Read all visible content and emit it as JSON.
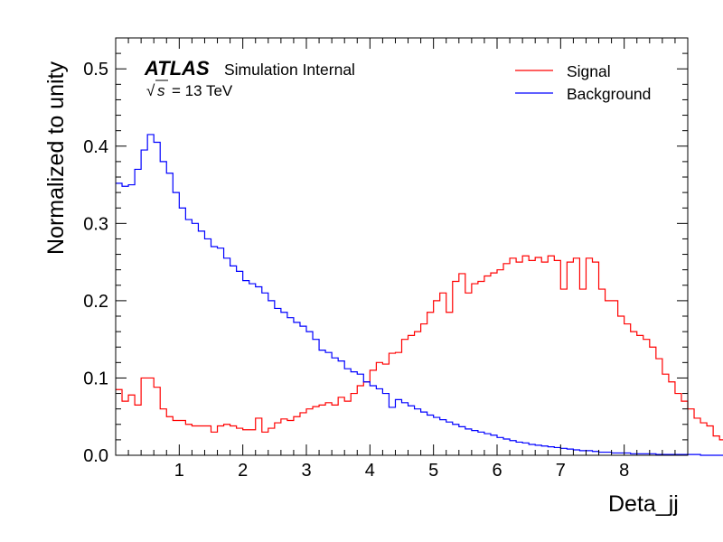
{
  "chart_data": {
    "type": "histogram-step",
    "xlabel": "Deta_jj",
    "ylabel": "Normalized to unity",
    "xlim": [
      0,
      9
    ],
    "ylim": [
      0,
      0.54
    ],
    "xticks": [
      "1",
      "2",
      "3",
      "4",
      "5",
      "6",
      "7",
      "8"
    ],
    "xtick_values": [
      1,
      2,
      3,
      4,
      5,
      6,
      7,
      8
    ],
    "yticks": [
      "0.0",
      "0.1",
      "0.2",
      "0.3",
      "0.4",
      "0.5"
    ],
    "ytick_values": [
      0,
      0.1,
      0.2,
      0.3,
      0.4,
      0.5
    ],
    "annotation": {
      "atlas": "ATLAS",
      "label": "Simulation Internal",
      "sqrt_symbol": "√",
      "s_symbol": "s",
      "energy": "= 13 TeV"
    },
    "legend_position": "top-right",
    "bin_width": 0.1,
    "series": [
      {
        "name": "Signal",
        "color": "#ff0000",
        "values": [
          0.085,
          0.07,
          0.078,
          0.065,
          0.1,
          0.1,
          0.088,
          0.06,
          0.05,
          0.045,
          0.045,
          0.04,
          0.038,
          0.038,
          0.038,
          0.03,
          0.038,
          0.04,
          0.038,
          0.035,
          0.033,
          0.033,
          0.048,
          0.03,
          0.035,
          0.042,
          0.047,
          0.045,
          0.05,
          0.055,
          0.06,
          0.063,
          0.065,
          0.068,
          0.065,
          0.075,
          0.07,
          0.08,
          0.09,
          0.095,
          0.11,
          0.12,
          0.118,
          0.132,
          0.133,
          0.15,
          0.155,
          0.16,
          0.17,
          0.185,
          0.2,
          0.21,
          0.185,
          0.225,
          0.235,
          0.21,
          0.222,
          0.225,
          0.232,
          0.236,
          0.24,
          0.248,
          0.255,
          0.25,
          0.258,
          0.252,
          0.256,
          0.25,
          0.258,
          0.252,
          0.215,
          0.25,
          0.255,
          0.215,
          0.255,
          0.25,
          0.215,
          0.2,
          0.2,
          0.18,
          0.17,
          0.16,
          0.155,
          0.15,
          0.14,
          0.125,
          0.105,
          0.095,
          0.08,
          0.07,
          0.06,
          0.048,
          0.042,
          0.038,
          0.025,
          0.02,
          0.015,
          0.012,
          0.01,
          0.006,
          0.003,
          0.001
        ]
      },
      {
        "name": "Background",
        "color": "#0000ff",
        "values": [
          0.352,
          0.348,
          0.35,
          0.37,
          0.395,
          0.415,
          0.405,
          0.38,
          0.365,
          0.34,
          0.32,
          0.305,
          0.3,
          0.29,
          0.28,
          0.27,
          0.268,
          0.255,
          0.245,
          0.238,
          0.226,
          0.222,
          0.218,
          0.21,
          0.2,
          0.19,
          0.185,
          0.178,
          0.172,
          0.167,
          0.16,
          0.15,
          0.136,
          0.133,
          0.126,
          0.122,
          0.112,
          0.108,
          0.105,
          0.095,
          0.09,
          0.086,
          0.08,
          0.062,
          0.072,
          0.068,
          0.064,
          0.06,
          0.056,
          0.052,
          0.049,
          0.046,
          0.043,
          0.04,
          0.037,
          0.034,
          0.032,
          0.03,
          0.028,
          0.026,
          0.023,
          0.021,
          0.019,
          0.017,
          0.016,
          0.014,
          0.013,
          0.012,
          0.011,
          0.01,
          0.009,
          0.008,
          0.007,
          0.006,
          0.006,
          0.005,
          0.004,
          0.004,
          0.003,
          0.003,
          0.003,
          0.002,
          0.002,
          0.002,
          0.002,
          0.001,
          0.001,
          0.001,
          0.001,
          0.001,
          0.001,
          0.001,
          0.0,
          0.0,
          0.0,
          0.0,
          0.0,
          0.0,
          0.0,
          0.0
        ]
      }
    ]
  }
}
